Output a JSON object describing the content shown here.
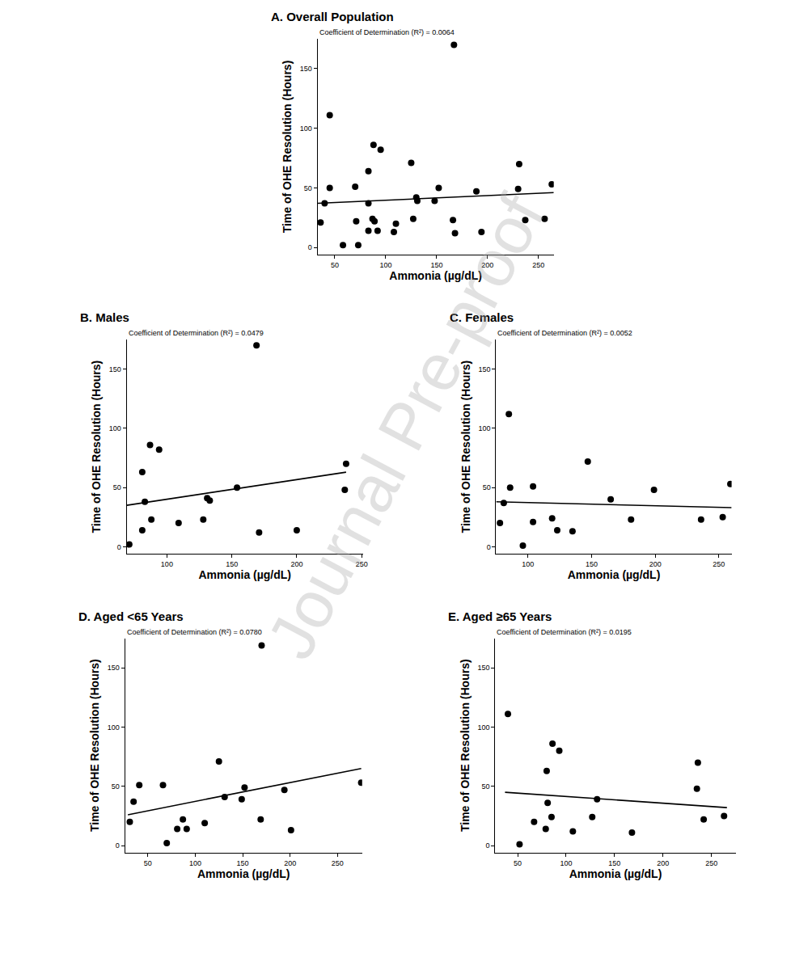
{
  "watermark": "Journal Pre-proof",
  "chart_data": [
    {
      "type": "scatter",
      "title": "A. Overall Population",
      "subtitle": "Coefficient of Determination (R²) = 0.0064",
      "x_label": "Ammonia (µg/dL)",
      "y_label": "Time of OHE Resolution (Hours)",
      "x": [
        36,
        40,
        45,
        45,
        58,
        70,
        71,
        73,
        83,
        83,
        83,
        88,
        87,
        89,
        92,
        95,
        108,
        110,
        125,
        127,
        130,
        131,
        148,
        152,
        166,
        167,
        168,
        194,
        189,
        231,
        230,
        237,
        256,
        263
      ],
      "values": [
        21,
        37,
        111,
        50,
        2,
        51,
        22,
        2,
        64,
        37,
        14,
        86,
        24,
        22,
        14,
        82,
        13,
        20,
        71,
        24,
        42,
        39,
        39,
        50,
        23,
        170,
        12,
        13,
        47,
        70,
        49,
        23,
        24,
        53
      ],
      "fit_line": {
        "x": [
          33,
          265
        ],
        "y": [
          37,
          46
        ]
      },
      "xlim": [
        33,
        265
      ],
      "ylim": [
        -6,
        175
      ],
      "xticks": [
        50,
        100,
        150,
        200,
        250
      ],
      "yticks": [
        0,
        50,
        100,
        150
      ],
      "color": "#000000",
      "marker": "circle",
      "line_style": "solid",
      "grid": false
    },
    {
      "type": "scatter",
      "title": "B. Males",
      "subtitle": "Coefficient of Determination (R²) = 0.0479",
      "x_label": "Ammonia (µg/dL)",
      "y_label": "Time of OHE Resolution (Hours)",
      "x": [
        71,
        81,
        81,
        83,
        87,
        88,
        94,
        109,
        128,
        131,
        133,
        154,
        169,
        171,
        200,
        237,
        238
      ],
      "values": [
        2,
        14,
        63,
        38,
        86,
        23,
        82,
        20,
        23,
        41,
        39,
        50,
        170,
        12,
        14,
        48,
        70
      ],
      "fit_line": {
        "x": [
          69,
          238
        ],
        "y": [
          35,
          63
        ]
      },
      "xlim": [
        69,
        251
      ],
      "ylim": [
        -6,
        175
      ],
      "xticks": [
        100,
        150,
        200,
        250
      ],
      "yticks": [
        0,
        50,
        100,
        150
      ],
      "color": "#000000",
      "marker": "circle",
      "line_style": "solid",
      "grid": false
    },
    {
      "type": "scatter",
      "title": "C. Females",
      "subtitle": "Coefficient of Determination (R²) = 0.0052",
      "x_label": "Ammonia (µg/dL)",
      "y_label": "Time of OHE Resolution (Hours)",
      "x": [
        78,
        81,
        85,
        86,
        96,
        104,
        104,
        119,
        123,
        135,
        147,
        165,
        181,
        199,
        236,
        253,
        259
      ],
      "values": [
        20,
        37,
        112,
        50,
        1,
        21,
        51,
        24,
        14,
        13,
        72,
        40,
        23,
        48,
        23,
        25,
        53
      ],
      "fit_line": {
        "x": [
          75,
          260
        ],
        "y": [
          38,
          33
        ]
      },
      "xlim": [
        75,
        260
      ],
      "ylim": [
        -6,
        175
      ],
      "xticks": [
        100,
        150,
        200,
        250
      ],
      "yticks": [
        0,
        50,
        100,
        150
      ],
      "color": "#000000",
      "marker": "circle",
      "line_style": "solid",
      "grid": false
    },
    {
      "type": "scatter",
      "title": "D. Aged <65 Years",
      "subtitle": "Coefficient of Determination (R²) = 0.0780",
      "x_label": "Ammonia (µg/dL)",
      "y_label": "Time of OHE Resolution (Hours)",
      "x": [
        31,
        35,
        41,
        66,
        70,
        81,
        87,
        91,
        110,
        125,
        131,
        149,
        152,
        169,
        170,
        194,
        201,
        275
      ],
      "values": [
        20,
        37,
        51,
        51,
        2,
        14,
        22,
        14,
        19,
        71,
        41,
        39,
        49,
        22,
        169,
        47,
        13,
        53
      ],
      "fit_line": {
        "x": [
          29,
          275
        ],
        "y": [
          26,
          65
        ]
      },
      "xlim": [
        26,
        276
      ],
      "ylim": [
        -6,
        175
      ],
      "xticks": [
        50,
        100,
        150,
        200,
        250
      ],
      "yticks": [
        0,
        50,
        100,
        150
      ],
      "color": "#000000",
      "marker": "circle",
      "line_style": "solid",
      "grid": false
    },
    {
      "type": "scatter",
      "title": "E. Aged ≥65 Years",
      "subtitle": "Coefficient of Determination (R²) = 0.0195",
      "x_label": "Ammonia (µg/dL)",
      "y_label": "Time of OHE Resolution (Hours)",
      "x": [
        40,
        52,
        67,
        79,
        80,
        81,
        85,
        86,
        93,
        107,
        127,
        132,
        168,
        236,
        235,
        242,
        263
      ],
      "values": [
        111,
        1,
        20,
        14,
        63,
        36,
        24,
        86,
        80,
        12,
        24,
        39,
        11,
        70,
        48,
        22,
        25
      ],
      "fit_line": {
        "x": [
          37,
          266
        ],
        "y": [
          45,
          32
        ]
      },
      "xlim": [
        27,
        275
      ],
      "ylim": [
        -6,
        175
      ],
      "xticks": [
        50,
        100,
        150,
        200,
        250
      ],
      "yticks": [
        0,
        50,
        100,
        150
      ],
      "color": "#000000",
      "marker": "circle",
      "line_style": "solid",
      "grid": false
    }
  ]
}
